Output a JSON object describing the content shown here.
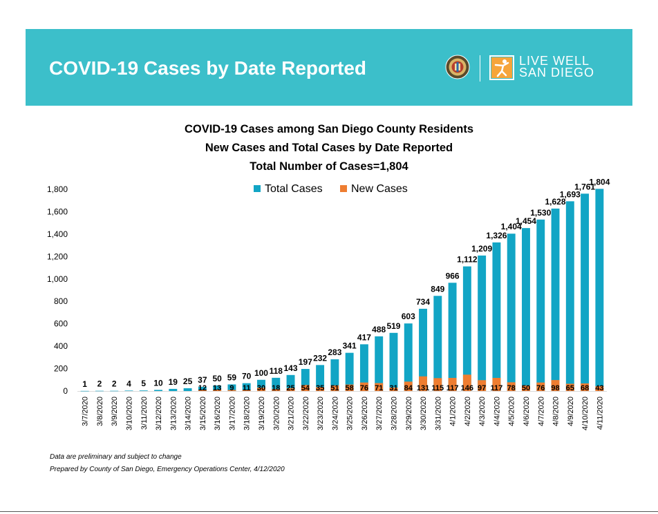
{
  "header": {
    "title": "COVID-19 Cases by Date Reported",
    "logo_line1": "LIVE WELL",
    "logo_line2": "SAN DIEGO",
    "background_color": "#3cbfca"
  },
  "chart_data": {
    "type": "bar",
    "title_lines": [
      "COVID-19 Cases among San Diego County Residents",
      "New Cases and Total Cases by Date Reported",
      "Total Number of Cases=1,804"
    ],
    "categories": [
      "3/7/2020",
      "3/8/2020",
      "3/9/2020",
      "3/10/2020",
      "3/11/2020",
      "3/12/2020",
      "3/13/2020",
      "3/14/2020",
      "3/15/2020",
      "3/16/2020",
      "3/17/2020",
      "3/18/2020",
      "3/19/2020",
      "3/20/2020",
      "3/21/2020",
      "3/22/2020",
      "3/23/2020",
      "3/24/2020",
      "3/25/2020",
      "3/26/2020",
      "3/27/2020",
      "3/28/2020",
      "3/29/2020",
      "3/30/2020",
      "3/31/2020",
      "4/1/2020",
      "4/2/2020",
      "4/3/2020",
      "4/4/2020",
      "4/5/2020",
      "4/6/2020",
      "4/7/2020",
      "4/8/2020",
      "4/9/2020",
      "4/10/2020",
      "4/11/2020"
    ],
    "series": [
      {
        "name": "Total Cases",
        "color": "#12a5c5",
        "values": [
          1,
          2,
          2,
          4,
          5,
          10,
          19,
          25,
          37,
          50,
          59,
          70,
          100,
          118,
          143,
          197,
          232,
          283,
          341,
          417,
          488,
          519,
          603,
          734,
          849,
          966,
          1112,
          1209,
          1326,
          1404,
          1454,
          1530,
          1628,
          1693,
          1761,
          1804
        ],
        "labels": [
          "1",
          "2",
          "2",
          "4",
          "5",
          "10",
          "19",
          "25",
          "37",
          "50",
          "59",
          "70",
          "100",
          "118",
          "143",
          "197",
          "232",
          "283",
          "341",
          "417",
          "488",
          "519",
          "603",
          "734",
          "849",
          "966",
          "1,112",
          "1,209",
          "1,326",
          "1,404",
          "1,454",
          "1,530",
          "1,628",
          "1,693",
          "1,761",
          "1,804"
        ]
      },
      {
        "name": "New Cases",
        "color": "#ee7d31",
        "values": [
          null,
          null,
          null,
          null,
          null,
          null,
          null,
          null,
          12,
          13,
          9,
          11,
          30,
          18,
          25,
          54,
          35,
          51,
          58,
          76,
          71,
          31,
          84,
          131,
          115,
          117,
          146,
          97,
          117,
          78,
          50,
          76,
          98,
          65,
          68,
          43
        ],
        "labels": [
          "",
          "",
          "",
          "",
          "",
          "",
          "",
          "",
          "12",
          "13",
          "9",
          "11",
          "30",
          "18",
          "25",
          "54",
          "35",
          "51",
          "58",
          "76",
          "71",
          "31",
          "84",
          "131",
          "115",
          "117",
          "146",
          "97",
          "117",
          "78",
          "50",
          "76",
          "98",
          "65",
          "68",
          "43"
        ]
      }
    ],
    "y_ticks": [
      "0",
      "200",
      "400",
      "600",
      "800",
      "1,000",
      "1,200",
      "1,400",
      "1,600",
      "1,800"
    ],
    "ylim": [
      0,
      1800
    ],
    "grid": false,
    "legend_position": "top-center"
  },
  "footnotes": [
    "Data are preliminary and subject to change",
    "Prepared by County of San Diego, Emergency Operations Center, 4/12/2020"
  ]
}
